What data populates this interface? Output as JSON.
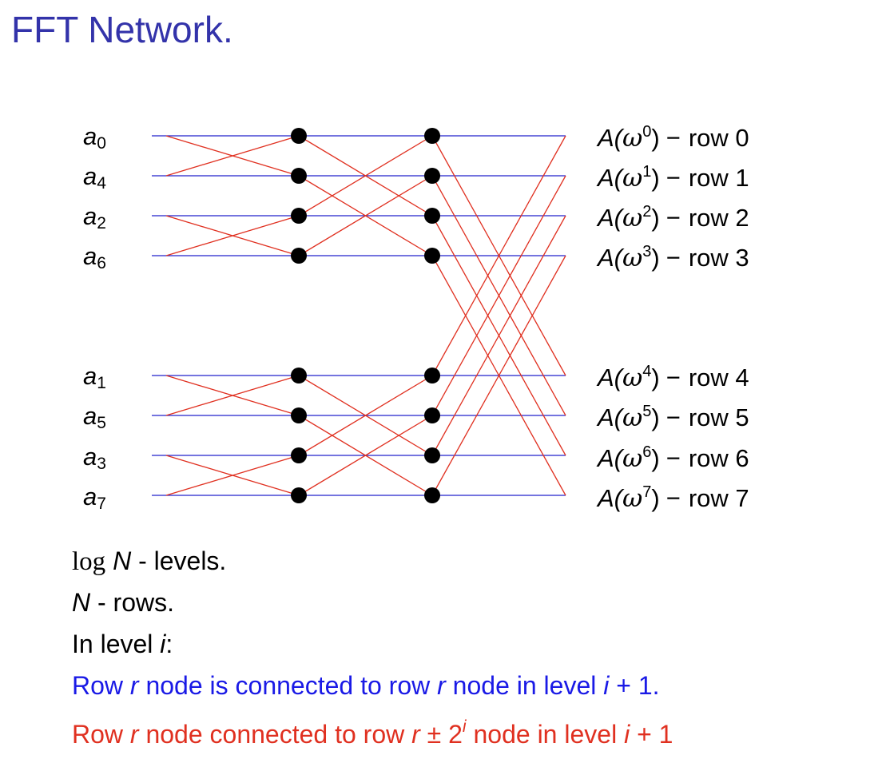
{
  "title": "FFT Network.",
  "diagram": {
    "inputs": [
      {
        "base": "a",
        "sub": "0"
      },
      {
        "base": "a",
        "sub": "4"
      },
      {
        "base": "a",
        "sub": "2"
      },
      {
        "base": "a",
        "sub": "6"
      },
      {
        "base": "a",
        "sub": "1"
      },
      {
        "base": "a",
        "sub": "5"
      },
      {
        "base": "a",
        "sub": "3"
      },
      {
        "base": "a",
        "sub": "7"
      }
    ],
    "outputs": [
      {
        "fn": "A(",
        "omega": "ω",
        "exp": "0",
        "close": ")",
        "dash": "−",
        "row": "row 0"
      },
      {
        "fn": "A(",
        "omega": "ω",
        "exp": "1",
        "close": ")",
        "dash": "−",
        "row": "row 1"
      },
      {
        "fn": "A(",
        "omega": "ω",
        "exp": "2",
        "close": ")",
        "dash": "−",
        "row": "row 2"
      },
      {
        "fn": "A(",
        "omega": "ω",
        "exp": "3",
        "close": ")",
        "dash": "−",
        "row": "row 3"
      },
      {
        "fn": "A(",
        "omega": "ω",
        "exp": "4",
        "close": ")",
        "dash": "−",
        "row": "row 4"
      },
      {
        "fn": "A(",
        "omega": "ω",
        "exp": "5",
        "close": ")",
        "dash": "−",
        "row": "row 5"
      },
      {
        "fn": "A(",
        "omega": "ω",
        "exp": "6",
        "close": ")",
        "dash": "−",
        "row": "row 6"
      },
      {
        "fn": "A(",
        "omega": "ω",
        "exp": "7",
        "close": ")",
        "dash": "−",
        "row": "row 7"
      }
    ],
    "rows": 8,
    "levels": 3,
    "colors": {
      "straight": "#2222cc",
      "cross": "#e03020",
      "node": "#000000"
    }
  },
  "notes": {
    "line1": {
      "log": "log",
      "var": "N",
      "text": " - levels."
    },
    "line2": {
      "var": "N",
      "text": " - rows."
    },
    "line3": {
      "text": "In level ",
      "var": "i",
      "end": ":"
    },
    "line4": {
      "t1": "Row ",
      "v1": "r",
      "t2": " node is connected to row ",
      "v2": "r",
      "t3": " node in level ",
      "v3": "i",
      "t4": " + 1."
    },
    "line5": {
      "t1": "Row ",
      "v1": "r",
      "t2": " node connected to row ",
      "v2": "r",
      "t3": " ± 2",
      "exp": "i",
      "t4": " node in level ",
      "v3": "i",
      "t5": " + 1"
    }
  }
}
